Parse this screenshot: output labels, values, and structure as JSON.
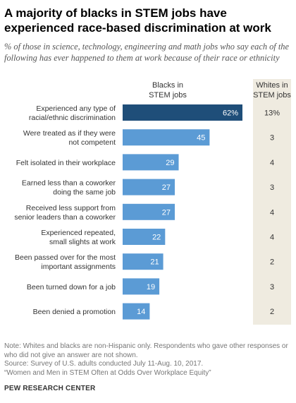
{
  "header": {
    "title": "A majority of blacks in STEM jobs have experienced race-based discrimination at work",
    "subtitle": "% of those in science, technology, engineering and math jobs who say each of the following has ever happened to them at work because of their race or ethnicity"
  },
  "colors": {
    "highlight_bar": "#1f4e79",
    "bar": "#5b9bd5",
    "whites_panel": "#efebe0",
    "bar_label": "#ffffff"
  },
  "chart_data": {
    "type": "bar",
    "orientation": "horizontal",
    "columns": {
      "blacks": [
        "Blacks in",
        "STEM jobs"
      ],
      "whites": [
        "Whites in",
        "STEM jobs"
      ]
    },
    "categories": [
      [
        "Experienced any type of",
        "racial/ethnic discrimination"
      ],
      [
        "Were treated as if they were",
        "not competent"
      ],
      [
        "Felt isolated in their workplace"
      ],
      [
        "Earned less than a coworker",
        "doing the same job"
      ],
      [
        "Received less support from",
        "senior leaders than a coworker"
      ],
      [
        "Experienced repeated,",
        "small slights at work"
      ],
      [
        "Been passed over for the most",
        "important assignments"
      ],
      [
        "Been turned down for a job"
      ],
      [
        "Been denied a promotion"
      ]
    ],
    "series": [
      {
        "name": "Blacks in STEM jobs",
        "values": [
          62,
          45,
          29,
          27,
          27,
          22,
          21,
          19,
          14
        ]
      },
      {
        "name": "Whites in STEM jobs",
        "values": [
          13,
          3,
          4,
          3,
          4,
          4,
          2,
          3,
          2
        ]
      }
    ],
    "value_labels": {
      "blacks": [
        "62%",
        "45",
        "29",
        "27",
        "27",
        "22",
        "21",
        "19",
        "14"
      ],
      "whites": [
        "13%",
        "3",
        "4",
        "3",
        "4",
        "4",
        "2",
        "3",
        "2"
      ]
    },
    "xlim": [
      0,
      62
    ]
  },
  "footer": {
    "notes": [
      "Note: Whites and blacks are non-Hispanic only. Respondents who gave other responses or",
      "who did not give an answer are not shown.",
      "Source: Survey of U.S. adults conducted July 11-Aug. 10, 2017.",
      "“Women and Men in STEM Often at Odds Over Workplace Equity”"
    ],
    "org": "PEW RESEARCH CENTER"
  }
}
